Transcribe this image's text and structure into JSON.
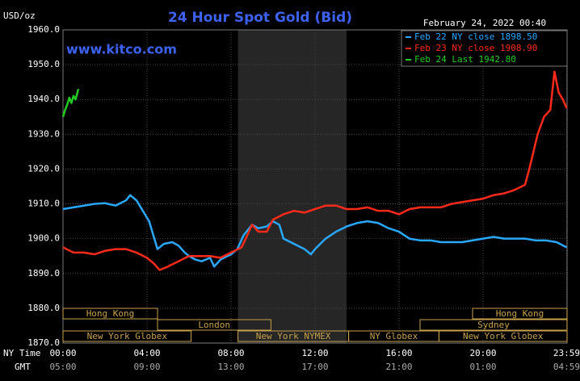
{
  "chart_data": {
    "type": "line",
    "title": "24 Hour Spot Gold (Bid)",
    "timestamp": "February 24, 2022 00:40",
    "watermark": "www.kitco.com",
    "ylabel": "USD/oz",
    "xlabel": "NY Time",
    "x2label": "GMT",
    "xlim": [
      0,
      24
    ],
    "ylim": [
      1870,
      1960
    ],
    "grid": true,
    "legend": "upper right",
    "xticks": [
      {
        "value": 0,
        "label": "00:00"
      },
      {
        "value": 4,
        "label": "04:00"
      },
      {
        "value": 8,
        "label": "08:00"
      },
      {
        "value": 12,
        "label": "12:00"
      },
      {
        "value": 16,
        "label": "16:00"
      },
      {
        "value": 20,
        "label": "20:00"
      },
      {
        "value": 23.98,
        "label": "23:59"
      }
    ],
    "x2ticks": [
      {
        "value": 0,
        "label": "05:00"
      },
      {
        "value": 4,
        "label": "09:00"
      },
      {
        "value": 8,
        "label": "13:00"
      },
      {
        "value": 12,
        "label": "17:00"
      },
      {
        "value": 16,
        "label": "21:00"
      },
      {
        "value": 20,
        "label": "01:00"
      },
      {
        "value": 23.98,
        "label": "04:59"
      }
    ],
    "yticks": [
      {
        "value": 1870,
        "label": "1870.0"
      },
      {
        "value": 1880,
        "label": "1880.0"
      },
      {
        "value": 1890,
        "label": "1890.0"
      },
      {
        "value": 1900,
        "label": "1900.0"
      },
      {
        "value": 1910,
        "label": "1910.0"
      },
      {
        "value": 1920,
        "label": "1920.0"
      },
      {
        "value": 1930,
        "label": "1930.0"
      },
      {
        "value": 1940,
        "label": "1940.0"
      },
      {
        "value": 1950,
        "label": "1950.0"
      },
      {
        "value": 1960,
        "label": "1960.0"
      }
    ],
    "shade": [
      8.33,
      13.5
    ],
    "sessions": [
      [
        {
          "label": "Hong Kong",
          "start": 0,
          "end": 4.5
        },
        {
          "label": "Hong Kong",
          "start": 19.5,
          "end": 24
        }
      ],
      [
        {
          "label": "London",
          "start": 4.5,
          "end": 9.9
        },
        {
          "label": "Sydney",
          "start": 17,
          "end": 24
        }
      ],
      [
        {
          "label": "New York Globex",
          "start": 0,
          "end": 6.1
        },
        {
          "label": "New York NYMEX",
          "start": 8.33,
          "end": 13.6
        },
        {
          "label": "NY Globex",
          "start": 13.6,
          "end": 17.9
        },
        {
          "label": "New York Globex",
          "start": 17.9,
          "end": 24
        }
      ]
    ],
    "series": [
      {
        "name": "Feb 22 NY close 1898.50",
        "color": "#2aa8ff",
        "x": [
          0,
          0.5,
          1,
          1.5,
          2,
          2.5,
          3,
          3.2,
          3.5,
          3.8,
          4.1,
          4.3,
          4.5,
          4.8,
          5.2,
          5.5,
          5.8,
          6,
          6.3,
          6.6,
          7,
          7.2,
          7.5,
          8,
          8.3,
          8.6,
          9,
          9.3,
          9.7,
          10,
          10.3,
          10.5,
          11,
          11.5,
          11.8,
          12,
          12.5,
          13,
          13.5,
          14,
          14.5,
          15,
          15.5,
          16,
          16.5,
          17,
          17.5,
          18,
          19,
          20,
          20.5,
          21,
          21.5,
          22,
          22.5,
          23,
          23.5,
          23.98
        ],
        "values": [
          1908.5,
          1909,
          1909.5,
          1910,
          1910.2,
          1909.5,
          1911,
          1912.5,
          1911,
          1908,
          1905,
          1901,
          1897,
          1898.5,
          1899,
          1898,
          1896,
          1895,
          1894,
          1893.5,
          1894.5,
          1892,
          1894,
          1895.5,
          1897,
          1901,
          1904,
          1903,
          1903.5,
          1905,
          1904,
          1900,
          1898.5,
          1897,
          1895.5,
          1897,
          1900,
          1902,
          1903.5,
          1904.5,
          1905,
          1904.5,
          1903,
          1902,
          1900,
          1899.5,
          1899.5,
          1899,
          1899,
          1900,
          1900.5,
          1900,
          1900,
          1900,
          1899.5,
          1899.5,
          1899,
          1897.5
        ]
      },
      {
        "name": "Feb 23 NY close 1908.90",
        "color": "#ff2a1a",
        "x": [
          0,
          0.5,
          1,
          1.5,
          2,
          2.5,
          3,
          3.5,
          4,
          4.3,
          4.6,
          5,
          5.5,
          6,
          6.5,
          7,
          7.5,
          8,
          8.5,
          8.7,
          9,
          9.3,
          9.7,
          10,
          10.5,
          11,
          11.5,
          12,
          12.5,
          13,
          13.5,
          14,
          14.5,
          15,
          15.5,
          16,
          16.5,
          17,
          17.5,
          18,
          18.5,
          19,
          19.5,
          20,
          20.5,
          21,
          21.5,
          22,
          22.2,
          22.4,
          22.6,
          22.9,
          23.2,
          23.4,
          23.6,
          23.8,
          23.98
        ],
        "values": [
          1897.5,
          1896,
          1896,
          1895.5,
          1896.5,
          1897,
          1897,
          1896,
          1894.5,
          1893,
          1891,
          1892,
          1893.5,
          1895,
          1895,
          1895,
          1894.5,
          1896,
          1897.5,
          1900,
          1904,
          1902,
          1902,
          1905.5,
          1907,
          1908,
          1907.5,
          1908.5,
          1909.5,
          1909.5,
          1908.5,
          1908.5,
          1909,
          1908,
          1908,
          1907,
          1908.5,
          1909,
          1909,
          1909,
          1910,
          1910.5,
          1911,
          1911.5,
          1912.5,
          1913,
          1914,
          1915.5,
          1920,
          1925,
          1930,
          1935,
          1937,
          1948,
          1942,
          1940,
          1937.5
        ]
      },
      {
        "name": "Feb 24 Last 1942.80",
        "color": "#22cc22",
        "x": [
          0,
          0.1,
          0.2,
          0.3,
          0.4,
          0.5,
          0.6,
          0.73
        ],
        "values": [
          1935,
          1937,
          1938.5,
          1940.5,
          1939,
          1941,
          1940,
          1943
        ]
      }
    ]
  }
}
